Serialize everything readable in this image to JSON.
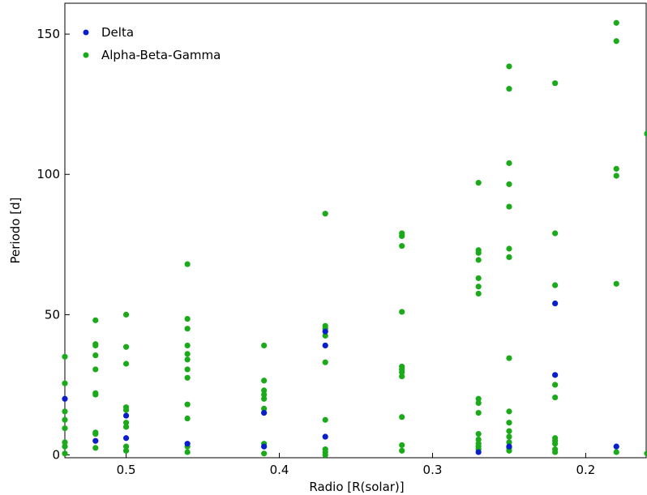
{
  "chart_data": {
    "type": "scatter",
    "xlabel": "Radio [R(solar)]",
    "ylabel": "Periodo [d]",
    "xlim": [
      0.54,
      0.16
    ],
    "ylim": [
      -1,
      161
    ],
    "x_reversed": true,
    "x_ticks": [
      0.5,
      0.4,
      0.3,
      0.2
    ],
    "x_tick_labels": [
      "0.5",
      "0.4",
      "0.3",
      "0.2"
    ],
    "y_ticks": [
      0,
      50,
      100,
      150
    ],
    "y_tick_labels": [
      "0",
      "50",
      "100",
      "150"
    ],
    "grid": false,
    "legend_position": "top-left",
    "series": [
      {
        "name": "Delta",
        "color": "#0a1fcc",
        "points": [
          [
            0.54,
            20.0
          ],
          [
            0.52,
            5.0
          ],
          [
            0.5,
            14.0
          ],
          [
            0.5,
            6.0
          ],
          [
            0.46,
            4.0
          ],
          [
            0.41,
            15.0
          ],
          [
            0.41,
            3.0
          ],
          [
            0.37,
            44.0
          ],
          [
            0.37,
            39.0
          ],
          [
            0.37,
            6.5
          ],
          [
            0.27,
            1.0
          ],
          [
            0.25,
            3.0
          ],
          [
            0.22,
            54.0
          ],
          [
            0.22,
            28.5
          ],
          [
            0.18,
            3.0
          ]
        ]
      },
      {
        "name": "Alpha-Beta-Gamma",
        "color": "#1aaa1a",
        "points": [
          [
            0.54,
            35
          ],
          [
            0.54,
            25.5
          ],
          [
            0.54,
            15.5
          ],
          [
            0.54,
            12.5
          ],
          [
            0.54,
            9.5
          ],
          [
            0.54,
            4.5
          ],
          [
            0.54,
            3.0
          ],
          [
            0.54,
            0.5
          ],
          [
            0.52,
            48
          ],
          [
            0.52,
            39.5
          ],
          [
            0.52,
            39
          ],
          [
            0.52,
            35.5
          ],
          [
            0.52,
            30.5
          ],
          [
            0.52,
            22
          ],
          [
            0.52,
            21.5
          ],
          [
            0.52,
            8
          ],
          [
            0.52,
            7.5
          ],
          [
            0.52,
            2.5
          ],
          [
            0.5,
            50
          ],
          [
            0.5,
            38.5
          ],
          [
            0.5,
            32.5
          ],
          [
            0.5,
            17
          ],
          [
            0.5,
            16
          ],
          [
            0.5,
            11.5
          ],
          [
            0.5,
            10
          ],
          [
            0.5,
            3
          ],
          [
            0.5,
            1.5
          ],
          [
            0.46,
            68
          ],
          [
            0.46,
            48.5
          ],
          [
            0.46,
            45
          ],
          [
            0.46,
            39
          ],
          [
            0.46,
            36
          ],
          [
            0.46,
            34
          ],
          [
            0.46,
            30.5
          ],
          [
            0.46,
            27.5
          ],
          [
            0.46,
            18
          ],
          [
            0.46,
            13
          ],
          [
            0.46,
            3
          ],
          [
            0.46,
            1
          ],
          [
            0.41,
            39
          ],
          [
            0.41,
            26.5
          ],
          [
            0.41,
            23
          ],
          [
            0.41,
            21.5
          ],
          [
            0.41,
            20
          ],
          [
            0.41,
            16.5
          ],
          [
            0.41,
            4
          ],
          [
            0.41,
            0.5
          ],
          [
            0.37,
            86
          ],
          [
            0.37,
            46
          ],
          [
            0.37,
            45
          ],
          [
            0.37,
            42.5
          ],
          [
            0.37,
            33
          ],
          [
            0.37,
            12.5
          ],
          [
            0.37,
            2
          ],
          [
            0.37,
            1
          ],
          [
            0.37,
            0
          ],
          [
            0.32,
            79
          ],
          [
            0.32,
            78
          ],
          [
            0.32,
            74.5
          ],
          [
            0.32,
            51
          ],
          [
            0.32,
            31.5
          ],
          [
            0.32,
            30.5
          ],
          [
            0.32,
            29.5
          ],
          [
            0.32,
            28
          ],
          [
            0.32,
            13.5
          ],
          [
            0.32,
            3.5
          ],
          [
            0.32,
            1.5
          ],
          [
            0.27,
            97
          ],
          [
            0.27,
            73
          ],
          [
            0.27,
            72
          ],
          [
            0.27,
            69.5
          ],
          [
            0.27,
            63
          ],
          [
            0.27,
            60
          ],
          [
            0.27,
            57.5
          ],
          [
            0.27,
            20
          ],
          [
            0.27,
            18.5
          ],
          [
            0.27,
            15
          ],
          [
            0.27,
            7.5
          ],
          [
            0.27,
            5.5
          ],
          [
            0.27,
            4
          ],
          [
            0.27,
            3
          ],
          [
            0.27,
            2
          ],
          [
            0.25,
            138.5
          ],
          [
            0.25,
            130.5
          ],
          [
            0.25,
            104
          ],
          [
            0.25,
            96.5
          ],
          [
            0.25,
            88.5
          ],
          [
            0.25,
            73.5
          ],
          [
            0.25,
            70.5
          ],
          [
            0.25,
            34.5
          ],
          [
            0.25,
            15.5
          ],
          [
            0.25,
            11.5
          ],
          [
            0.25,
            8.5
          ],
          [
            0.25,
            6.5
          ],
          [
            0.25,
            4.5
          ],
          [
            0.25,
            2.5
          ],
          [
            0.25,
            1.5
          ],
          [
            0.22,
            132.5
          ],
          [
            0.22,
            79
          ],
          [
            0.22,
            60.5
          ],
          [
            0.22,
            25
          ],
          [
            0.22,
            20.5
          ],
          [
            0.22,
            6
          ],
          [
            0.22,
            5
          ],
          [
            0.22,
            4
          ],
          [
            0.22,
            2
          ],
          [
            0.22,
            1
          ],
          [
            0.18,
            154
          ],
          [
            0.18,
            147.5
          ],
          [
            0.18,
            102
          ],
          [
            0.18,
            99.5
          ],
          [
            0.18,
            61
          ],
          [
            0.18,
            1
          ],
          [
            0.16,
            114.5
          ],
          [
            0.16,
            0.5
          ]
        ]
      }
    ]
  }
}
